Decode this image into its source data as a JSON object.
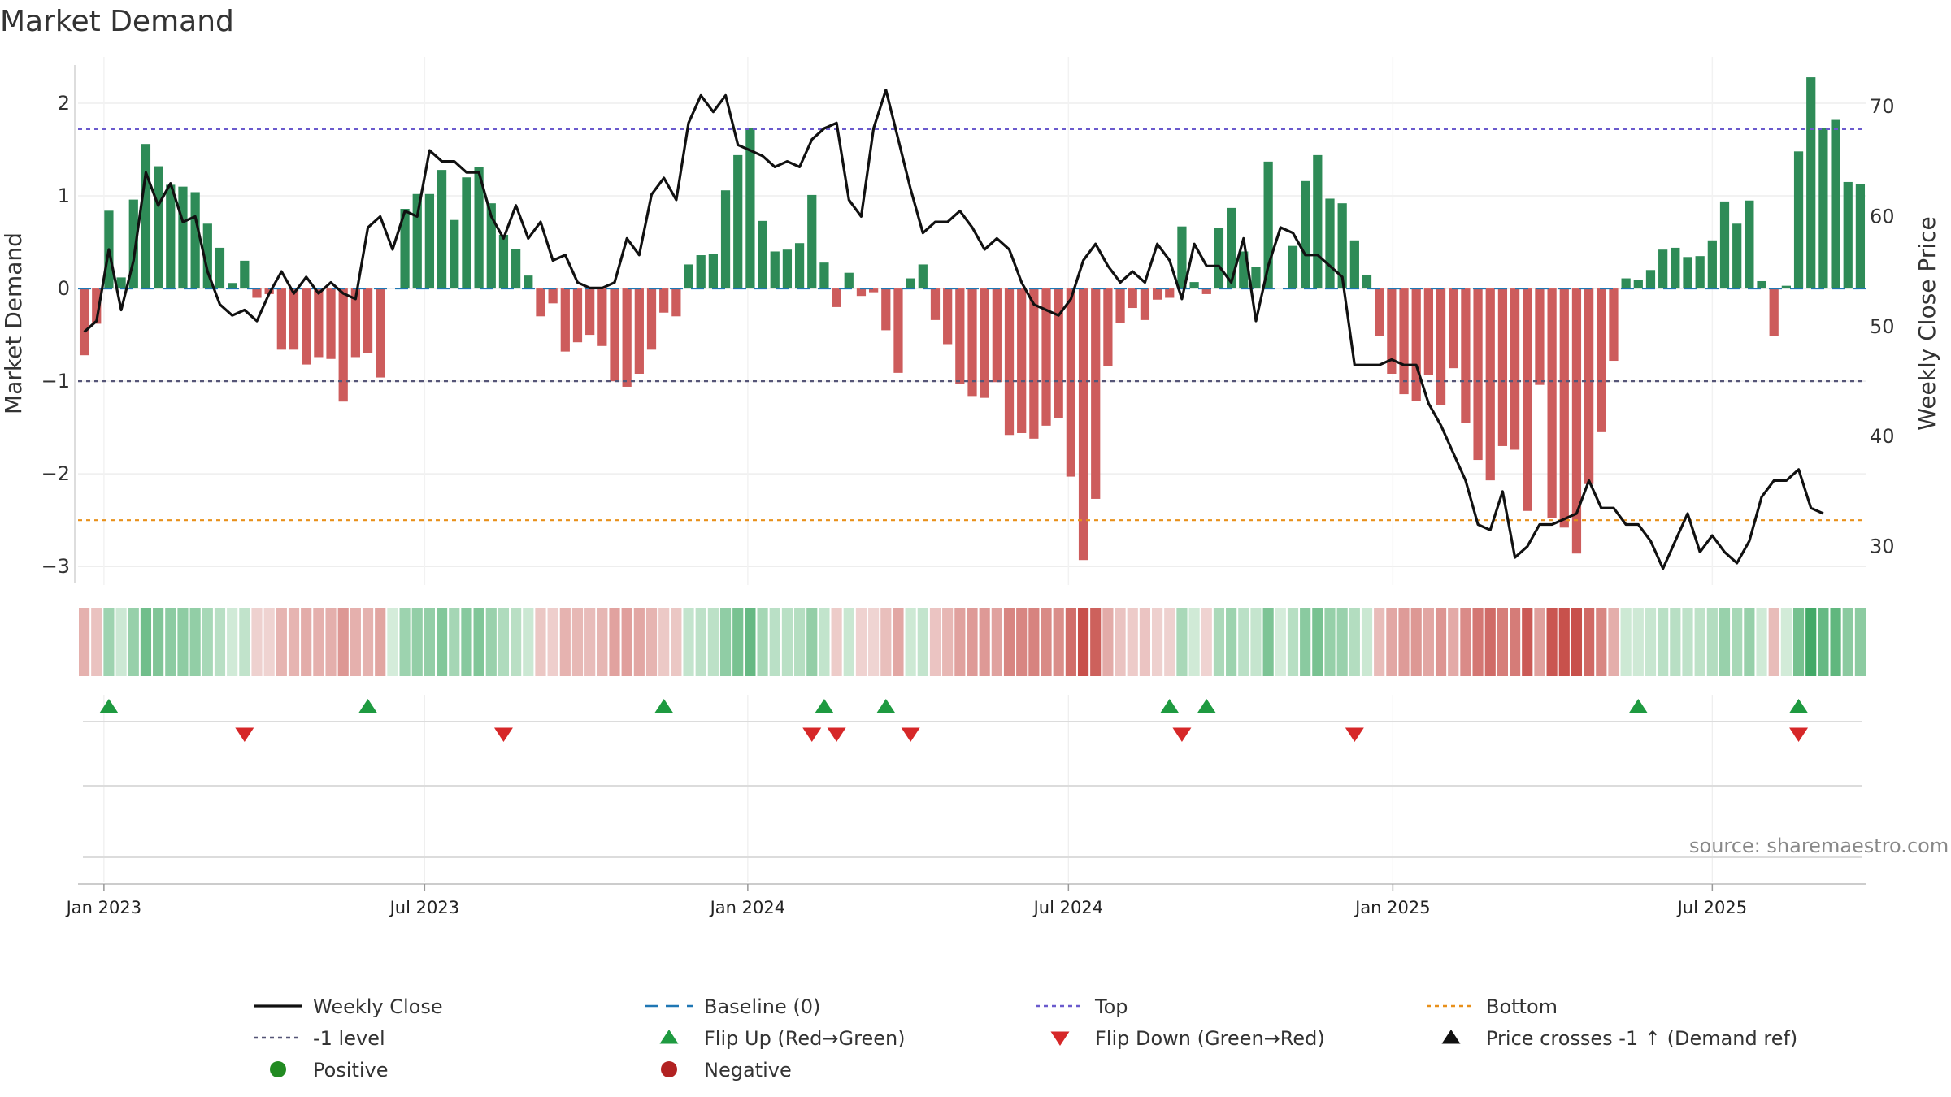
{
  "title": "Market Demand",
  "source": "source: sharemaestro.com",
  "colors": {
    "positive": "#2e8b57",
    "negative": "#cd5c5c",
    "close_line": "#111111",
    "top_line": "#6a5acd",
    "bottom_line": "#e8901a",
    "minus1_line": "#555577",
    "baseline": "#1f77b4",
    "flip_up": "#1e9a40",
    "flip_down": "#d62728",
    "dot_positive": "#228b22",
    "dot_negative": "#b22222"
  },
  "chart_data": {
    "type": "bar+line",
    "title": "Market Demand",
    "ylabel": "Market Demand",
    "y2label": "Weekly Close Price",
    "ylim": [
      -3.2,
      2.5
    ],
    "y2lim": [
      26.5,
      74.5
    ],
    "yticks": [
      "2",
      "1",
      "0",
      "−1",
      "−2",
      "−3"
    ],
    "ytick_values": [
      2,
      1,
      0,
      -1,
      -2,
      -3
    ],
    "y2ticks": [
      "70",
      "60",
      "50",
      "40",
      "30"
    ],
    "y2tick_values": [
      70,
      60,
      50,
      40,
      30
    ],
    "xticks": [
      "Jan 2023",
      "Jul 2023",
      "Jan 2024",
      "Jul 2024",
      "Jan 2025",
      "Jul 2025"
    ],
    "xtick_weeks": [
      1.6,
      27.6,
      53.8,
      79.8,
      106.1,
      132.0
    ],
    "top_level": 1.72,
    "bottom_level": -2.5,
    "minus1_level": -1,
    "demand": [
      -0.72,
      -0.38,
      0.84,
      0.12,
      0.96,
      1.56,
      1.32,
      1.12,
      1.1,
      1.04,
      0.7,
      0.44,
      0.06,
      0.3,
      -0.1,
      -0.06,
      -0.66,
      -0.66,
      -0.82,
      -0.74,
      -0.76,
      -1.22,
      -0.74,
      -0.7,
      -0.96,
      0.0,
      0.86,
      1.02,
      1.02,
      1.28,
      0.74,
      1.2,
      1.31,
      0.92,
      0.58,
      0.43,
      0.14,
      -0.3,
      -0.16,
      -0.68,
      -0.58,
      -0.5,
      -0.62,
      -1.0,
      -1.06,
      -0.92,
      -0.66,
      -0.26,
      -0.3,
      0.26,
      0.36,
      0.37,
      1.06,
      1.44,
      1.73,
      0.73,
      0.4,
      0.42,
      0.49,
      1.01,
      0.28,
      -0.2,
      0.17,
      -0.08,
      -0.04,
      -0.45,
      -0.91,
      0.11,
      0.26,
      -0.34,
      -0.6,
      -1.03,
      -1.16,
      -1.18,
      -1.01,
      -1.58,
      -1.56,
      -1.62,
      -1.48,
      -1.4,
      -2.03,
      -2.93,
      -2.27,
      -0.84,
      -0.37,
      -0.21,
      -0.34,
      -0.12,
      -0.1,
      0.67,
      0.07,
      -0.06,
      0.65,
      0.87,
      0.4,
      0.23,
      1.37,
      0.0,
      0.46,
      1.16,
      1.44,
      0.97,
      0.92,
      0.52,
      0.15,
      -0.51,
      -0.92,
      -1.14,
      -1.21,
      -0.93,
      -1.26,
      -0.86,
      -1.45,
      -1.85,
      -2.07,
      -1.7,
      -1.74,
      -2.4,
      -1.04,
      -2.48,
      -2.58,
      -2.86,
      -2.11,
      -1.55,
      -0.78,
      0.11,
      0.09,
      0.2,
      0.42,
      0.44,
      0.34,
      0.35,
      0.52,
      0.94,
      0.7,
      0.95,
      0.08,
      -0.51,
      0.03,
      1.48,
      2.28,
      1.73,
      1.82,
      1.15,
      1.13
    ],
    "close": [
      49.5,
      50.5,
      57.0,
      51.5,
      56.0,
      64.0,
      61.0,
      63.0,
      59.5,
      60.0,
      55.0,
      52.0,
      51.0,
      51.5,
      50.5,
      53.0,
      55.0,
      53.0,
      54.5,
      53.0,
      54.0,
      53.0,
      52.5,
      59.0,
      60.0,
      57.0,
      60.5,
      60.0,
      66.0,
      65.0,
      65.0,
      64.0,
      64.0,
      60.0,
      58.0,
      61.0,
      58.0,
      59.5,
      56.0,
      56.5,
      54.0,
      53.5,
      53.5,
      54.0,
      58.0,
      56.5,
      62.0,
      63.5,
      61.5,
      68.5,
      71.0,
      69.5,
      71.0,
      66.5,
      66.0,
      65.5,
      64.5,
      65.0,
      64.5,
      67.0,
      68.0,
      68.5,
      61.5,
      60.0,
      68.0,
      71.5,
      67.0,
      62.5,
      58.5,
      59.5,
      59.5,
      60.5,
      59.0,
      57.0,
      58.0,
      57.0,
      54.0,
      52.0,
      51.5,
      51.0,
      52.5,
      56.0,
      57.5,
      55.5,
      54.0,
      55.0,
      54.0,
      57.5,
      56.0,
      52.5,
      57.5,
      55.5,
      55.5,
      54.0,
      58.0,
      50.5,
      55.5,
      59.0,
      58.5,
      56.5,
      56.5,
      55.5,
      54.5,
      46.5,
      46.5,
      46.5,
      47.0,
      46.5,
      46.5,
      43.0,
      41.0,
      38.5,
      36.0,
      32.0,
      31.5,
      35.0,
      29.0,
      30.0,
      32.0,
      32.0,
      32.5,
      33.0,
      36.0,
      33.5,
      33.5,
      32.0,
      32.0,
      30.5,
      28.0,
      30.5,
      33.0,
      29.5,
      31.0,
      29.5,
      28.5,
      30.5,
      34.5,
      36.0,
      36.0,
      37.0,
      33.5,
      33.0
    ],
    "flip_up_weeks": [
      2,
      23,
      47,
      60,
      65,
      88,
      91,
      126,
      139
    ],
    "flip_down_weeks": [
      13,
      34,
      59,
      61,
      67,
      89,
      103,
      139
    ]
  },
  "legend": [
    {
      "label": "Weekly Close",
      "marker": "solid-line"
    },
    {
      "label": "Baseline (0)",
      "marker": "dashed-line"
    },
    {
      "label": "Top",
      "marker": "dotted-line-top"
    },
    {
      "label": "Bottom",
      "marker": "dotted-line-bottom"
    },
    {
      "label": "-1 level",
      "marker": "dotted-line-minus1"
    },
    {
      "label": "Flip Up (Red→Green)",
      "marker": "triangle-up"
    },
    {
      "label": "Flip Down (Green→Red)",
      "marker": "triangle-down"
    },
    {
      "label": "Price crosses -1 ↑ (Demand ref)",
      "marker": "triangle-up-black"
    },
    {
      "label": "Positive",
      "marker": "dot-positive"
    },
    {
      "label": "Negative",
      "marker": "dot-negative"
    }
  ]
}
